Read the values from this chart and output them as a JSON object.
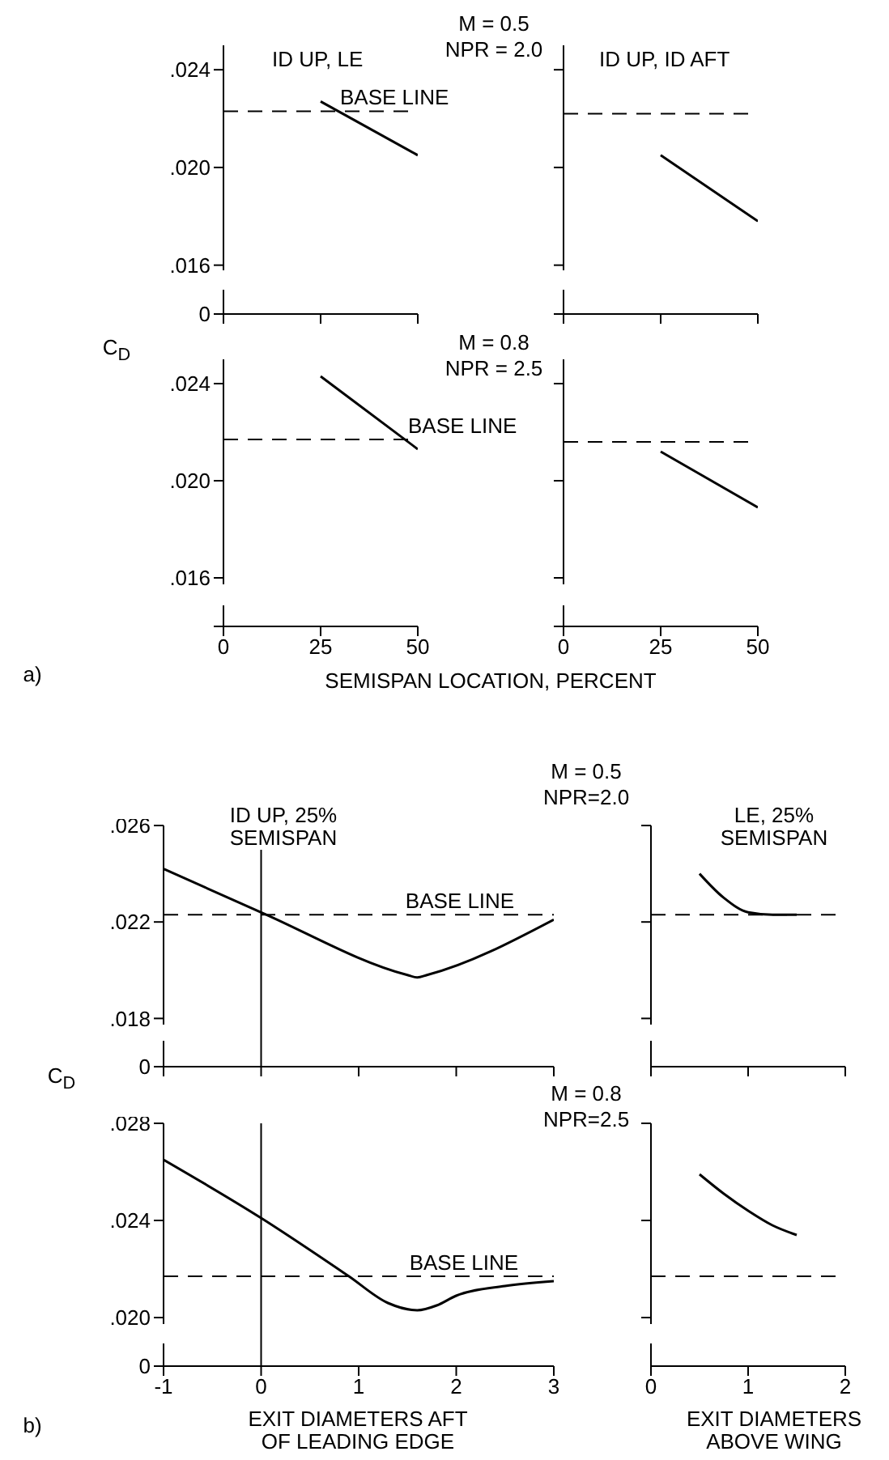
{
  "chart_data": [
    {
      "type": "line",
      "title": "ID UP, LE",
      "x": [
        25,
        50
      ],
      "series": [
        {
          "color": "#000000",
          "values": [
            0.0227,
            0.0205
          ]
        }
      ],
      "xlim": [
        0,
        50
      ],
      "xticks": [
        0,
        25,
        50
      ],
      "ylim": [
        0.014,
        0.025
      ],
      "yticks": [
        {
          "value": 0.014,
          "label": "0"
        },
        {
          "value": 0.016,
          "label": ".016"
        },
        {
          "value": 0.02,
          "label": ".020"
        },
        {
          "value": 0.024,
          "label": ".024"
        }
      ],
      "tick_labels": "y",
      "ref_lines": [
        {
          "axis": "y",
          "value": 0.0223,
          "label": "BASE LINE",
          "line_style": "dashed",
          "color": "#000000"
        }
      ],
      "annotations": [
        "M = 0.5",
        "NPR = 2.0"
      ]
    },
    {
      "type": "line",
      "title": "ID UP, ID AFT",
      "x": [
        25,
        50
      ],
      "series": [
        {
          "color": "#000000",
          "values": [
            0.0205,
            0.0178
          ]
        }
      ],
      "xlim": [
        0,
        50
      ],
      "xticks": [
        0,
        25,
        50
      ],
      "ylim": [
        0.014,
        0.025
      ],
      "yticks": [
        0.014,
        0.016,
        0.02,
        0.024
      ],
      "tick_labels": false,
      "ref_lines": [
        {
          "axis": "y",
          "value": 0.0222,
          "line_style": "dashed",
          "color": "#000000"
        }
      ]
    },
    {
      "type": "line",
      "xlabel": "SEMISPAN LOCATION, PERCENT",
      "ylabel": "C$_{D}$",
      "x": [
        25,
        50
      ],
      "series": [
        {
          "color": "#000000",
          "values": [
            0.0243,
            0.0213
          ]
        }
      ],
      "xlim": [
        0,
        50
      ],
      "xticks": [
        0,
        25,
        50
      ],
      "ylim": [
        0.014,
        0.025
      ],
      "yticks": [
        {
          "value": 0.014,
          "label": null
        },
        {
          "value": 0.016,
          "label": ".016"
        },
        {
          "value": 0.02,
          "label": ".020"
        },
        {
          "value": 0.024,
          "label": ".024"
        }
      ],
      "ref_lines": [
        {
          "axis": "y",
          "value": 0.0217,
          "label": "BASE LINE",
          "line_style": "dashed",
          "color": "#000000"
        }
      ],
      "annotations": [
        "M = 0.8",
        "NPR = 2.5",
        "a)"
      ]
    },
    {
      "type": "line",
      "x": [
        25,
        50
      ],
      "series": [
        {
          "color": "#000000",
          "values": [
            0.0212,
            0.0189
          ]
        }
      ],
      "xlim": [
        0,
        50
      ],
      "xticks": [
        0,
        25,
        50
      ],
      "ylim": [
        0.014,
        0.025
      ],
      "yticks": [
        0.014,
        0.016,
        0.02,
        0.024
      ],
      "tick_labels": "x",
      "ref_lines": [
        {
          "axis": "y",
          "value": 0.0216,
          "line_style": "dashed",
          "color": "#000000"
        }
      ]
    },
    {
      "type": "line",
      "title": "ID UP, 25%\nSEMISPAN",
      "x": [
        -1,
        0,
        1.5,
        1.6,
        1.7,
        3
      ],
      "series": [
        {
          "color": "#000000",
          "values": [
            0.0242,
            0.0224,
            0.0198,
            0.0197,
            0.0198,
            0.0221
          ]
        }
      ],
      "xlim": [
        -1,
        3
      ],
      "xticks": [
        -1,
        0,
        1,
        2,
        3
      ],
      "ylim": [
        0.016,
        0.026
      ],
      "yticks": [
        {
          "value": 0.016,
          "label": "0"
        },
        {
          "value": 0.018,
          "label": ".018"
        },
        {
          "value": 0.022,
          "label": ".022"
        },
        {
          "value": 0.026,
          "label": ".026"
        }
      ],
      "tick_labels": "y",
      "ref_lines": [
        {
          "axis": "y",
          "value": 0.0223,
          "label": "BASE LINE",
          "line_style": "dashed",
          "color": "#000000"
        },
        {
          "axis": "x",
          "value": 0,
          "line_style": "solid",
          "color": "#000000"
        }
      ],
      "annotations": [
        "M = 0.5",
        "NPR=2.0"
      ]
    },
    {
      "type": "line",
      "title": "LE, 25%\nSEMISPAN",
      "x": [
        0.5,
        0.75,
        1.0,
        1.25,
        1.5
      ],
      "series": [
        {
          "color": "#000000",
          "values": [
            0.024,
            0.023,
            0.0224,
            0.0223,
            0.0223
          ]
        }
      ],
      "xlim": [
        0,
        2
      ],
      "xticks": [
        0,
        1,
        2
      ],
      "ylim": [
        0.016,
        0.026
      ],
      "yticks": [
        0.018,
        0.022,
        0.026
      ],
      "tick_labels": false,
      "ref_lines": [
        {
          "axis": "y",
          "value": 0.0223,
          "line_style": "dashed",
          "color": "#000000"
        }
      ]
    },
    {
      "type": "line",
      "xlabel": "EXIT DIAMETERS AFT\nOF LEADING EDGE",
      "ylabel": "C$_{D}$",
      "x": [
        -1,
        0,
        0.9,
        1.3,
        1.6,
        1.8,
        2,
        2.5,
        3
      ],
      "series": [
        {
          "color": "#000000",
          "values": [
            0.0265,
            0.0241,
            0.0217,
            0.0206,
            0.0203,
            0.0205,
            0.0209,
            0.0213,
            0.0215
          ]
        }
      ],
      "xlim": [
        -1,
        3
      ],
      "xticks": [
        -1,
        0,
        1,
        2,
        3
      ],
      "ylim": [
        0.018,
        0.028
      ],
      "yticks": [
        {
          "value": 0.018,
          "label": "0"
        },
        {
          "value": 0.02,
          "label": ".020"
        },
        {
          "value": 0.024,
          "label": ".024"
        },
        {
          "value": 0.028,
          "label": ".028"
        }
      ],
      "ref_lines": [
        {
          "axis": "y",
          "value": 0.0217,
          "label": "BASE LINE",
          "line_style": "dashed",
          "color": "#000000"
        },
        {
          "axis": "x",
          "value": 0,
          "line_style": "solid",
          "color": "#000000"
        }
      ],
      "annotations": [
        "M = 0.8",
        "NPR=2.5",
        "b)"
      ]
    },
    {
      "type": "line",
      "xlabel": "EXIT DIAMETERS\nABOVE WING",
      "x": [
        0.5,
        0.75,
        1.0,
        1.25,
        1.5
      ],
      "series": [
        {
          "color": "#000000",
          "values": [
            0.0259,
            0.0251,
            0.0244,
            0.0238,
            0.0234
          ]
        }
      ],
      "xlim": [
        0,
        2
      ],
      "xticks": [
        0,
        1,
        2
      ],
      "ylim": [
        0.018,
        0.028
      ],
      "yticks": [
        0.02,
        0.024,
        0.028
      ],
      "tick_labels": "x",
      "ref_lines": [
        {
          "axis": "y",
          "value": 0.0217,
          "line_style": "dashed",
          "color": "#000000"
        }
      ]
    }
  ]
}
